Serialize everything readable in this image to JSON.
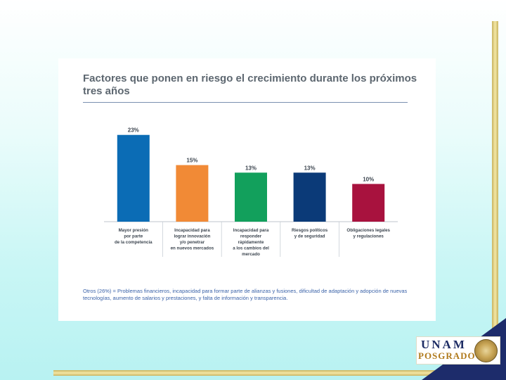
{
  "slide": {
    "footnote": "Otros (26%) = Problemas financieros, incapacidad para formar parte de alianzas y fusiones, dificultad de adaptación y adopción de nuevas tecnologías, aumento de salarios y prestaciones, y falta de información y transparencia.",
    "logo_top": "UNAM",
    "logo_bottom": "POSGRADO"
  },
  "colors": {
    "bar1": "#0b6cb5",
    "bar2": "#f18a36",
    "bar3": "#12a05c",
    "bar4": "#0b3a78",
    "bar5": "#a8123e",
    "corner": "#1d2c6b"
  },
  "chart_data": {
    "type": "bar",
    "title": "Factores que ponen en riesgo el crecimiento durante los próximos tres años",
    "categories": [
      [
        "Mayor presión",
        "por parte",
        "de la competencia"
      ],
      [
        "Incapacidad para",
        "lograr innovación",
        "y/o penetrar",
        "en nuevos mercados"
      ],
      [
        "Incapacidad para",
        "responder",
        "rápidamente",
        "a los cambios del",
        "mercado"
      ],
      [
        "Riesgos políticos",
        "y de seguridad"
      ],
      [
        "Obligaciones legales",
        "y regulaciones"
      ]
    ],
    "values": [
      23,
      15,
      13,
      13,
      10
    ],
    "value_labels": [
      "23%",
      "15%",
      "13%",
      "13%",
      "10%"
    ],
    "ylim": [
      0,
      25
    ],
    "grid": false
  }
}
